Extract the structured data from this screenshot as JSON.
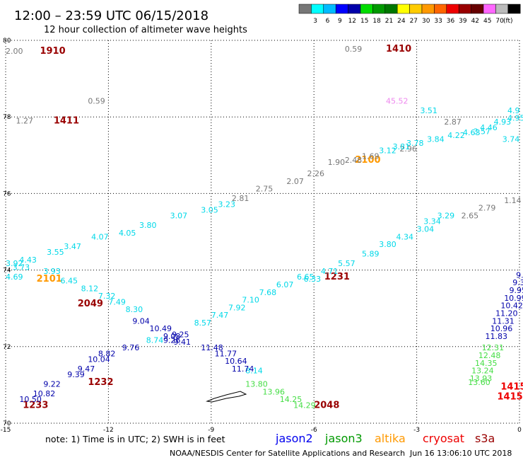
{
  "header": {
    "title": "12:00 – 23:59 UTC 06/15/2018",
    "subtitle": "12 hour collection of altimeter wave heights"
  },
  "legend": {
    "unit": "(ft)",
    "colors": [
      "#777777",
      "#00ffff",
      "#00bbff",
      "#0000ff",
      "#0000aa",
      "#00dd00",
      "#009900",
      "#007700",
      "#ffff00",
      "#ffcc00",
      "#ff9900",
      "#ff6600",
      "#ee0000",
      "#990000",
      "#660000",
      "#ff66ff",
      "#bbbbbb",
      "#000000"
    ],
    "labels": [
      "3",
      "6",
      "9",
      "12",
      "15",
      "18",
      "21",
      "24",
      "27",
      "30",
      "33",
      "36",
      "39",
      "42",
      "45",
      "70"
    ]
  },
  "footer": {
    "note": "note: 1) Time is in UTC; 2) SWH is in feet",
    "satellites": [
      {
        "name": "jason2",
        "color": "#0000ee"
      },
      {
        "name": "jason3",
        "color": "#009900"
      },
      {
        "name": "altika",
        "color": "#ff9900"
      },
      {
        "name": "cryosat",
        "color": "#ee0000"
      },
      {
        "name": "s3a",
        "color": "#990000"
      }
    ],
    "credit": "NOAA/NESDIS Center for Satellite Applications and Research",
    "timestamp": "Jun 16 13:06:10 UTC 2018"
  },
  "chart_data": {
    "type": "scatter",
    "xlim": [
      -15,
      0
    ],
    "ylim": [
      70,
      80
    ],
    "x_ticks": [
      "-15",
      "-12",
      "-9",
      "-6",
      "-3",
      "0"
    ],
    "y_ticks": [
      "70",
      "72",
      "74",
      "76",
      "78",
      "80"
    ],
    "grid": true,
    "series": [
      {
        "name": "s3a",
        "color": "#990000",
        "time_labels": [
          {
            "lon": -14.0,
            "lat": 79.65,
            "text": "1910"
          },
          {
            "lon": -3.9,
            "lat": 79.7,
            "text": "1410"
          },
          {
            "lon": -13.6,
            "lat": 77.83,
            "text": "1411"
          },
          {
            "lon": -12.9,
            "lat": 73.05,
            "text": "2049"
          },
          {
            "lon": -5.7,
            "lat": 73.75,
            "text": "1231"
          },
          {
            "lon": -12.6,
            "lat": 71.0,
            "text": "1232"
          },
          {
            "lon": -14.5,
            "lat": 70.4,
            "text": "1233"
          },
          {
            "lon": -6.0,
            "lat": 70.4,
            "text": "2048"
          }
        ]
      },
      {
        "name": "cryosat",
        "color": "#ee0000",
        "time_labels": [
          {
            "lon": -0.55,
            "lat": 70.88,
            "text": "1415"
          },
          {
            "lon": -0.65,
            "lat": 70.62,
            "text": "1415"
          }
        ]
      },
      {
        "name": "altika",
        "color": "#ff9900",
        "time_labels": [
          {
            "lon": -14.1,
            "lat": 73.7,
            "text": "2101"
          },
          {
            "lon": -4.8,
            "lat": 76.8,
            "text": "2100"
          }
        ]
      },
      {
        "name": "swh_gray",
        "color": "#777777",
        "points": [
          {
            "lon": -15.0,
            "lat": 79.65,
            "v": "2.00"
          },
          {
            "lon": -5.1,
            "lat": 79.7,
            "v": "0.59"
          },
          {
            "lon": -14.7,
            "lat": 77.83,
            "v": "1.27"
          },
          {
            "lon": -12.6,
            "lat": 78.35,
            "v": "0.59"
          },
          {
            "lon": -2.2,
            "lat": 77.8,
            "v": "2.87"
          },
          {
            "lon": -3.5,
            "lat": 77.1,
            "v": "2.96"
          },
          {
            "lon": -4.6,
            "lat": 76.9,
            "v": "1.69"
          },
          {
            "lon": -5.1,
            "lat": 76.8,
            "v": "2.48"
          },
          {
            "lon": -5.6,
            "lat": 76.75,
            "v": "1.90"
          },
          {
            "lon": -6.2,
            "lat": 76.45,
            "v": "2.26"
          },
          {
            "lon": -6.8,
            "lat": 76.25,
            "v": "2.07"
          },
          {
            "lon": -7.7,
            "lat": 76.05,
            "v": "2.75"
          },
          {
            "lon": -8.4,
            "lat": 75.8,
            "v": "2.81"
          },
          {
            "lon": -0.45,
            "lat": 75.75,
            "v": "1.14"
          },
          {
            "lon": -1.2,
            "lat": 75.55,
            "v": "2.79"
          },
          {
            "lon": -1.7,
            "lat": 75.35,
            "v": "2.65"
          }
        ]
      },
      {
        "name": "swh_pink",
        "color": "#ee88ee",
        "points": [
          {
            "lon": -3.9,
            "lat": 78.35,
            "v": "45.52"
          }
        ]
      },
      {
        "name": "swh_cyan",
        "color": "#00d8e8",
        "points": [
          {
            "lon": -2.9,
            "lat": 78.1,
            "v": "3.51"
          },
          {
            "lon": -0.35,
            "lat": 78.1,
            "v": "4.9"
          },
          {
            "lon": -0.35,
            "lat": 77.9,
            "v": "4.95"
          },
          {
            "lon": -0.75,
            "lat": 77.8,
            "v": "4.93"
          },
          {
            "lon": -1.15,
            "lat": 77.65,
            "v": "4.46"
          },
          {
            "lon": -1.35,
            "lat": 77.55,
            "v": "3.57"
          },
          {
            "lon": -1.65,
            "lat": 77.52,
            "v": "4.63"
          },
          {
            "lon": -2.1,
            "lat": 77.45,
            "v": "4.22"
          },
          {
            "lon": -2.7,
            "lat": 77.35,
            "v": "3.84"
          },
          {
            "lon": -3.3,
            "lat": 77.25,
            "v": "3.78"
          },
          {
            "lon": -3.7,
            "lat": 77.15,
            "v": "3.81"
          },
          {
            "lon": -4.1,
            "lat": 77.05,
            "v": "3.12"
          },
          {
            "lon": -0.5,
            "lat": 77.35,
            "v": "3.74"
          },
          {
            "lon": -8.8,
            "lat": 75.65,
            "v": "3.23"
          },
          {
            "lon": -9.3,
            "lat": 75.5,
            "v": "3.05"
          },
          {
            "lon": -10.2,
            "lat": 75.35,
            "v": "3.07"
          },
          {
            "lon": -11.1,
            "lat": 75.1,
            "v": "3.80"
          },
          {
            "lon": -11.7,
            "lat": 74.9,
            "v": "4.05"
          },
          {
            "lon": -12.5,
            "lat": 74.8,
            "v": "4.07"
          },
          {
            "lon": -13.3,
            "lat": 74.55,
            "v": "3.47"
          },
          {
            "lon": -13.8,
            "lat": 74.4,
            "v": "3.55"
          },
          {
            "lon": -14.6,
            "lat": 74.2,
            "v": "4.43"
          },
          {
            "lon": -15.0,
            "lat": 74.1,
            "v": "3.92"
          },
          {
            "lon": -14.8,
            "lat": 74.0,
            "v": "3.73"
          },
          {
            "lon": -13.9,
            "lat": 73.9,
            "v": "3.93"
          },
          {
            "lon": -15.0,
            "lat": 73.75,
            "v": "4.69"
          },
          {
            "lon": -13.4,
            "lat": 73.65,
            "v": "6.45"
          },
          {
            "lon": -12.8,
            "lat": 73.45,
            "v": "8.12"
          },
          {
            "lon": -12.3,
            "lat": 73.25,
            "v": "7.32"
          },
          {
            "lon": -12.0,
            "lat": 73.1,
            "v": "7.49"
          },
          {
            "lon": -11.5,
            "lat": 72.9,
            "v": "8.30"
          },
          {
            "lon": -5.8,
            "lat": 73.9,
            "v": "4.71"
          },
          {
            "lon": -6.5,
            "lat": 73.75,
            "v": "6.65"
          },
          {
            "lon": -6.3,
            "lat": 73.7,
            "v": "6.33"
          },
          {
            "lon": -5.3,
            "lat": 74.1,
            "v": "5.57"
          },
          {
            "lon": -4.6,
            "lat": 74.35,
            "v": "5.89"
          },
          {
            "lon": -4.1,
            "lat": 74.6,
            "v": "3.80"
          },
          {
            "lon": -3.6,
            "lat": 74.8,
            "v": "4.34"
          },
          {
            "lon": -3.0,
            "lat": 75.0,
            "v": "3.04"
          },
          {
            "lon": -2.8,
            "lat": 75.2,
            "v": "3.34"
          },
          {
            "lon": -2.4,
            "lat": 75.35,
            "v": "3.29"
          },
          {
            "lon": -7.1,
            "lat": 73.55,
            "v": "6.07"
          },
          {
            "lon": -7.6,
            "lat": 73.35,
            "v": "7.68"
          },
          {
            "lon": -8.1,
            "lat": 73.15,
            "v": "7.10"
          },
          {
            "lon": -8.5,
            "lat": 72.95,
            "v": "7.92"
          },
          {
            "lon": -9.0,
            "lat": 72.75,
            "v": "7.47"
          },
          {
            "lon": -9.5,
            "lat": 72.55,
            "v": "8.57"
          },
          {
            "lon": -10.9,
            "lat": 72.1,
            "v": "8.74"
          },
          {
            "lon": -8.0,
            "lat": 71.3,
            "v": "8.14"
          }
        ]
      },
      {
        "name": "swh_blue",
        "color": "#0000aa",
        "points": [
          {
            "lon": -11.3,
            "lat": 72.6,
            "v": "9.04"
          },
          {
            "lon": -10.8,
            "lat": 72.4,
            "v": "10.49"
          },
          {
            "lon": -10.4,
            "lat": 72.2,
            "v": "9.08"
          },
          {
            "lon": -10.15,
            "lat": 72.25,
            "v": "9.25"
          },
          {
            "lon": -10.4,
            "lat": 72.1,
            "v": "9.26"
          },
          {
            "lon": -10.1,
            "lat": 72.05,
            "v": "9.41"
          },
          {
            "lon": -11.6,
            "lat": 71.9,
            "v": "9.76"
          },
          {
            "lon": -9.3,
            "lat": 71.9,
            "v": "11.48"
          },
          {
            "lon": -12.3,
            "lat": 71.75,
            "v": "8.82"
          },
          {
            "lon": -12.6,
            "lat": 71.6,
            "v": "10.04"
          },
          {
            "lon": -12.9,
            "lat": 71.35,
            "v": "9.47"
          },
          {
            "lon": -13.2,
            "lat": 71.2,
            "v": "9.39"
          },
          {
            "lon": -13.9,
            "lat": 70.95,
            "v": "9.22"
          },
          {
            "lon": -14.2,
            "lat": 70.7,
            "v": "10.82"
          },
          {
            "lon": -14.6,
            "lat": 70.55,
            "v": "10.50"
          },
          {
            "lon": -8.9,
            "lat": 71.75,
            "v": "11.77"
          },
          {
            "lon": -8.6,
            "lat": 71.55,
            "v": "10.64"
          },
          {
            "lon": -8.4,
            "lat": 71.35,
            "v": "11.74"
          },
          {
            "lon": -0.1,
            "lat": 73.8,
            "v": "9."
          },
          {
            "lon": -0.2,
            "lat": 73.6,
            "v": "9.3"
          },
          {
            "lon": -0.3,
            "lat": 73.4,
            "v": "9.95"
          },
          {
            "lon": -0.45,
            "lat": 73.2,
            "v": "10.99"
          },
          {
            "lon": -0.55,
            "lat": 73.0,
            "v": "10.42"
          },
          {
            "lon": -0.7,
            "lat": 72.8,
            "v": "11.20"
          },
          {
            "lon": -0.8,
            "lat": 72.6,
            "v": "11.31"
          },
          {
            "lon": -0.85,
            "lat": 72.4,
            "v": "10.96"
          },
          {
            "lon": -1.0,
            "lat": 72.2,
            "v": "11.83"
          }
        ]
      },
      {
        "name": "swh_green",
        "color": "#44dd44",
        "points": [
          {
            "lon": -8.0,
            "lat": 70.95,
            "v": "13.80"
          },
          {
            "lon": -7.5,
            "lat": 70.75,
            "v": "13.96"
          },
          {
            "lon": -7.0,
            "lat": 70.55,
            "v": "14.25"
          },
          {
            "lon": -6.6,
            "lat": 70.4,
            "v": "14.29"
          },
          {
            "lon": -1.1,
            "lat": 71.9,
            "v": "12.31"
          },
          {
            "lon": -1.2,
            "lat": 71.7,
            "v": "12.48"
          },
          {
            "lon": -1.3,
            "lat": 71.5,
            "v": "14.35"
          },
          {
            "lon": -1.4,
            "lat": 71.3,
            "v": "13.24"
          },
          {
            "lon": -1.45,
            "lat": 71.1,
            "v": "13.93"
          },
          {
            "lon": -1.5,
            "lat": 71.0,
            "v": "13.60"
          }
        ]
      }
    ]
  }
}
